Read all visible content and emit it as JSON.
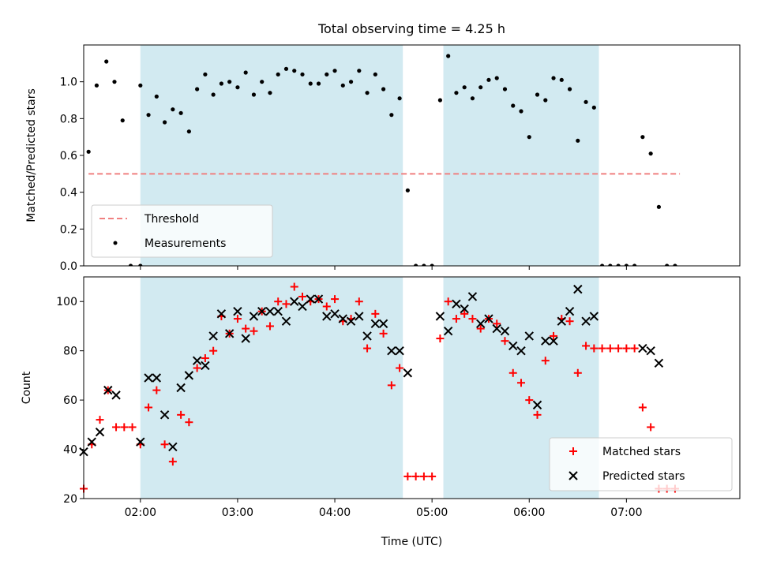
{
  "chart_data": [
    {
      "type": "scatter",
      "title": "Total observing time = 4.25 h",
      "xlabel": "",
      "ylabel": "Matched/Predicted stars",
      "xlim": [
        "01:25",
        "08:10"
      ],
      "ylim": [
        0,
        1.2
      ],
      "yticks": [
        "0.0",
        "0.2",
        "0.4",
        "0.6",
        "0.8",
        "1.0"
      ],
      "shaded_intervals": [
        [
          "02:00",
          "04:42"
        ],
        [
          "05:07",
          "06:43"
        ]
      ],
      "shade_color": "#add8e6",
      "legend_position": "lower left",
      "threshold": {
        "name": "Threshold",
        "value": 0.5,
        "x_range": [
          "01:28",
          "07:33"
        ],
        "color": "#f08080"
      },
      "series": [
        {
          "name": "Measurements",
          "color": "#000000",
          "marker": "dot",
          "x": [
            "01:28",
            "01:33",
            "01:39",
            "01:44",
            "01:49",
            "01:54",
            "02:00",
            "02:00",
            "02:05",
            "02:10",
            "02:15",
            "02:20",
            "02:25",
            "02:30",
            "02:35",
            "02:40",
            "02:45",
            "02:50",
            "02:55",
            "03:00",
            "03:05",
            "03:10",
            "03:15",
            "03:20",
            "03:25",
            "03:30",
            "03:35",
            "03:40",
            "03:45",
            "03:50",
            "03:55",
            "04:00",
            "04:05",
            "04:10",
            "04:15",
            "04:20",
            "04:25",
            "04:30",
            "04:35",
            "04:40",
            "04:45",
            "04:50",
            "04:55",
            "05:00",
            "05:05",
            "05:10",
            "05:15",
            "05:20",
            "05:25",
            "05:30",
            "05:35",
            "05:40",
            "05:45",
            "05:50",
            "05:55",
            "06:00",
            "06:05",
            "06:10",
            "06:15",
            "06:20",
            "06:25",
            "06:30",
            "06:35",
            "06:40",
            "06:45",
            "06:50",
            "06:55",
            "07:00",
            "07:05",
            "07:10",
            "07:15",
            "07:20",
            "07:25",
            "07:30"
          ],
          "y": [
            0.62,
            0.98,
            1.11,
            1.0,
            0.79,
            0.0,
            0.0,
            0.98,
            0.82,
            0.92,
            0.78,
            0.85,
            0.83,
            0.73,
            0.96,
            1.04,
            0.93,
            0.99,
            1.0,
            0.97,
            1.05,
            0.93,
            1.0,
            0.94,
            1.04,
            1.07,
            1.06,
            1.04,
            0.99,
            0.99,
            1.04,
            1.06,
            0.98,
            1.0,
            1.06,
            0.94,
            1.04,
            0.96,
            0.82,
            0.91,
            0.41,
            0.0,
            0.0,
            0.0,
            0.9,
            1.14,
            0.94,
            0.97,
            0.91,
            0.97,
            1.01,
            1.02,
            0.96,
            0.87,
            0.84,
            0.7,
            0.93,
            0.9,
            1.02,
            1.01,
            0.96,
            0.68,
            0.89,
            0.86,
            0.0,
            0.0,
            0.0,
            0.0,
            0.0,
            0.7,
            0.61,
            0.32,
            0.0,
            0.0
          ]
        }
      ]
    },
    {
      "type": "scatter",
      "title": "",
      "xlabel": "Time (UTC)",
      "ylabel": "Count",
      "xlim": [
        "01:25",
        "08:10"
      ],
      "ylim": [
        20,
        110
      ],
      "xticks": [
        "02:00",
        "03:00",
        "04:00",
        "05:00",
        "06:00",
        "07:00"
      ],
      "yticks": [
        "20",
        "40",
        "60",
        "80",
        "100"
      ],
      "legend_position": "lower right",
      "series": [
        {
          "name": "Matched stars",
          "color": "#ff0000",
          "marker": "plus",
          "x": [
            "01:25",
            "01:30",
            "01:35",
            "01:40",
            "01:45",
            "01:50",
            "01:55",
            "02:00",
            "02:05",
            "02:10",
            "02:15",
            "02:20",
            "02:25",
            "02:30",
            "02:35",
            "02:40",
            "02:45",
            "02:50",
            "02:55",
            "03:00",
            "03:05",
            "03:10",
            "03:15",
            "03:20",
            "03:25",
            "03:30",
            "03:35",
            "03:40",
            "03:45",
            "03:50",
            "03:55",
            "04:00",
            "04:05",
            "04:10",
            "04:15",
            "04:20",
            "04:25",
            "04:30",
            "04:35",
            "04:40",
            "04:45",
            "04:50",
            "04:55",
            "05:00",
            "05:05",
            "05:10",
            "05:15",
            "05:20",
            "05:25",
            "05:30",
            "05:35",
            "05:40",
            "05:45",
            "05:50",
            "05:55",
            "06:00",
            "06:05",
            "06:10",
            "06:15",
            "06:20",
            "06:25",
            "06:30",
            "06:35",
            "06:40",
            "06:45",
            "06:50",
            "06:55",
            "07:00",
            "07:05",
            "07:10",
            "07:15",
            "07:20",
            "07:25",
            "07:30"
          ],
          "y": [
            24,
            42,
            52,
            64,
            49,
            49,
            49,
            42,
            57,
            64,
            42,
            35,
            54,
            51,
            73,
            77,
            80,
            94,
            87,
            93,
            89,
            88,
            96,
            90,
            100,
            99,
            106,
            102,
            100,
            101,
            98,
            101,
            92,
            93,
            100,
            81,
            95,
            87,
            66,
            73,
            29,
            29,
            29,
            29,
            85,
            100,
            93,
            95,
            93,
            89,
            93,
            91,
            84,
            71,
            67,
            60,
            54,
            76,
            86,
            93,
            92,
            71,
            82,
            81,
            81,
            81,
            81,
            81,
            81,
            57,
            49,
            24,
            24,
            24
          ]
        },
        {
          "name": "Predicted stars",
          "color": "#000000",
          "marker": "x",
          "x": [
            "01:25",
            "01:30",
            "01:35",
            "01:40",
            "01:45",
            "02:00",
            "02:05",
            "02:10",
            "02:15",
            "02:20",
            "02:25",
            "02:30",
            "02:35",
            "02:40",
            "02:45",
            "02:50",
            "02:55",
            "03:00",
            "03:05",
            "03:10",
            "03:15",
            "03:20",
            "03:25",
            "03:30",
            "03:35",
            "03:40",
            "03:45",
            "03:50",
            "03:55",
            "04:00",
            "04:05",
            "04:10",
            "04:15",
            "04:20",
            "04:25",
            "04:30",
            "04:35",
            "04:40",
            "04:45",
            "05:05",
            "05:10",
            "05:15",
            "05:20",
            "05:25",
            "05:30",
            "05:35",
            "05:40",
            "05:45",
            "05:50",
            "05:55",
            "06:00",
            "06:05",
            "06:10",
            "06:15",
            "06:20",
            "06:25",
            "06:30",
            "06:35",
            "06:40",
            "07:10",
            "07:15",
            "07:20"
          ],
          "y": [
            39,
            43,
            47,
            64,
            62,
            43,
            69,
            69,
            54,
            41,
            65,
            70,
            76,
            74,
            86,
            95,
            87,
            96,
            85,
            94,
            96,
            96,
            96,
            92,
            100,
            98,
            101,
            101,
            94,
            95,
            93,
            92,
            94,
            86,
            91,
            91,
            80,
            80,
            71,
            94,
            88,
            99,
            97,
            102,
            91,
            93,
            89,
            88,
            82,
            80,
            86,
            58,
            84,
            84,
            92,
            96,
            105,
            92,
            94,
            81,
            80,
            75
          ]
        }
      ]
    }
  ]
}
